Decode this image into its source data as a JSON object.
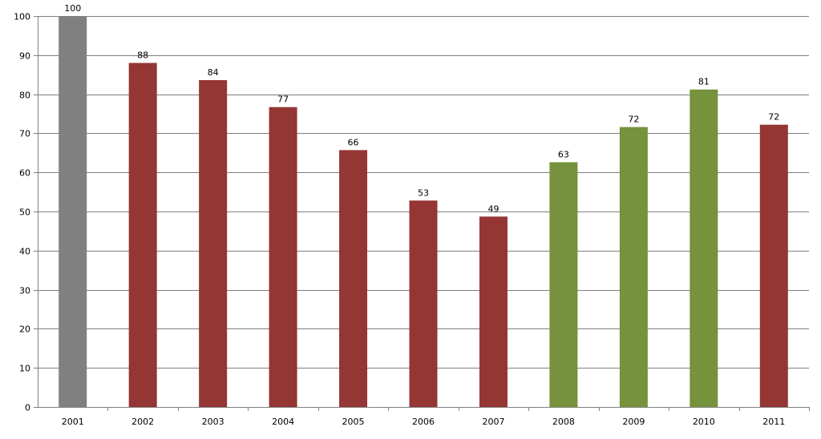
{
  "chart_data": {
    "type": "bar",
    "title": "",
    "xlabel": "",
    "ylabel": "",
    "categories": [
      "2001",
      "2002",
      "2003",
      "2004",
      "2005",
      "2006",
      "2007",
      "2008",
      "2009",
      "2010",
      "2011"
    ],
    "values": [
      100,
      88,
      83.6,
      76.7,
      65.7,
      52.8,
      48.7,
      62.6,
      71.6,
      81.2,
      72.2
    ],
    "data_labels": [
      "100",
      "88",
      "84",
      "77",
      "66",
      "53",
      "49",
      "63",
      "72",
      "81",
      "72"
    ],
    "bar_colors": [
      "#808080",
      "#943634",
      "#943634",
      "#943634",
      "#943634",
      "#943634",
      "#943634",
      "#76923c",
      "#76923c",
      "#76923c",
      "#943634"
    ],
    "ylim": [
      0,
      100
    ],
    "yticks": [
      0,
      10,
      20,
      30,
      40,
      50,
      60,
      70,
      80,
      90,
      100
    ],
    "grid": true,
    "legend": "none"
  }
}
